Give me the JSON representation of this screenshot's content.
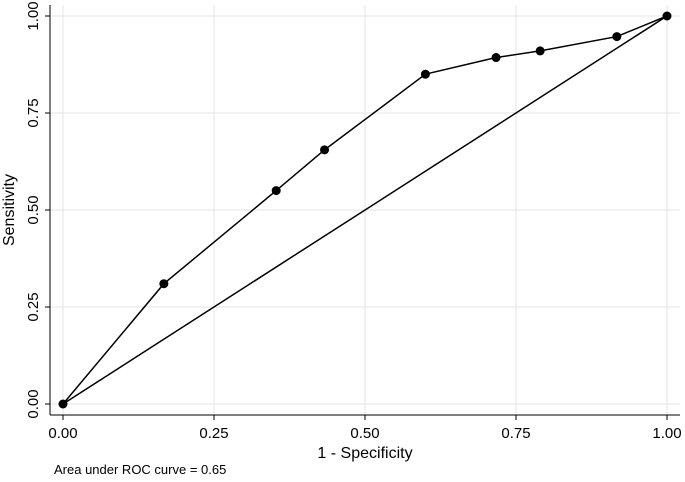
{
  "chart_data": {
    "type": "line",
    "xlabel": "1 - Specificity",
    "ylabel": "Sensitivity",
    "xlim": [
      0,
      1
    ],
    "ylim": [
      0,
      1
    ],
    "x_ticks": [
      0,
      0.25,
      0.5,
      0.75,
      1
    ],
    "x_tick_labels": [
      "0.00",
      "0.25",
      "0.50",
      "0.75",
      "1.00"
    ],
    "y_ticks": [
      0,
      0.25,
      0.5,
      0.75,
      1
    ],
    "y_tick_labels": [
      "0.00",
      "0.25",
      "0.50",
      "0.75",
      "1.00"
    ],
    "grid": true,
    "series": [
      {
        "x": [
          0.0,
          0.167,
          0.353,
          0.433,
          0.6,
          0.717,
          0.79,
          0.917,
          1.0
        ],
        "y": [
          0.0,
          0.31,
          0.55,
          0.655,
          0.85,
          0.893,
          0.91,
          0.947,
          1.0
        ],
        "markers": true
      },
      {
        "x": [
          0,
          1
        ],
        "y": [
          0,
          1
        ],
        "markers": false
      }
    ],
    "annotation": "Area under ROC curve = 0.65",
    "colors": {
      "line": "#000000",
      "grid": "#e6e6e6",
      "axis": "#000000"
    }
  }
}
